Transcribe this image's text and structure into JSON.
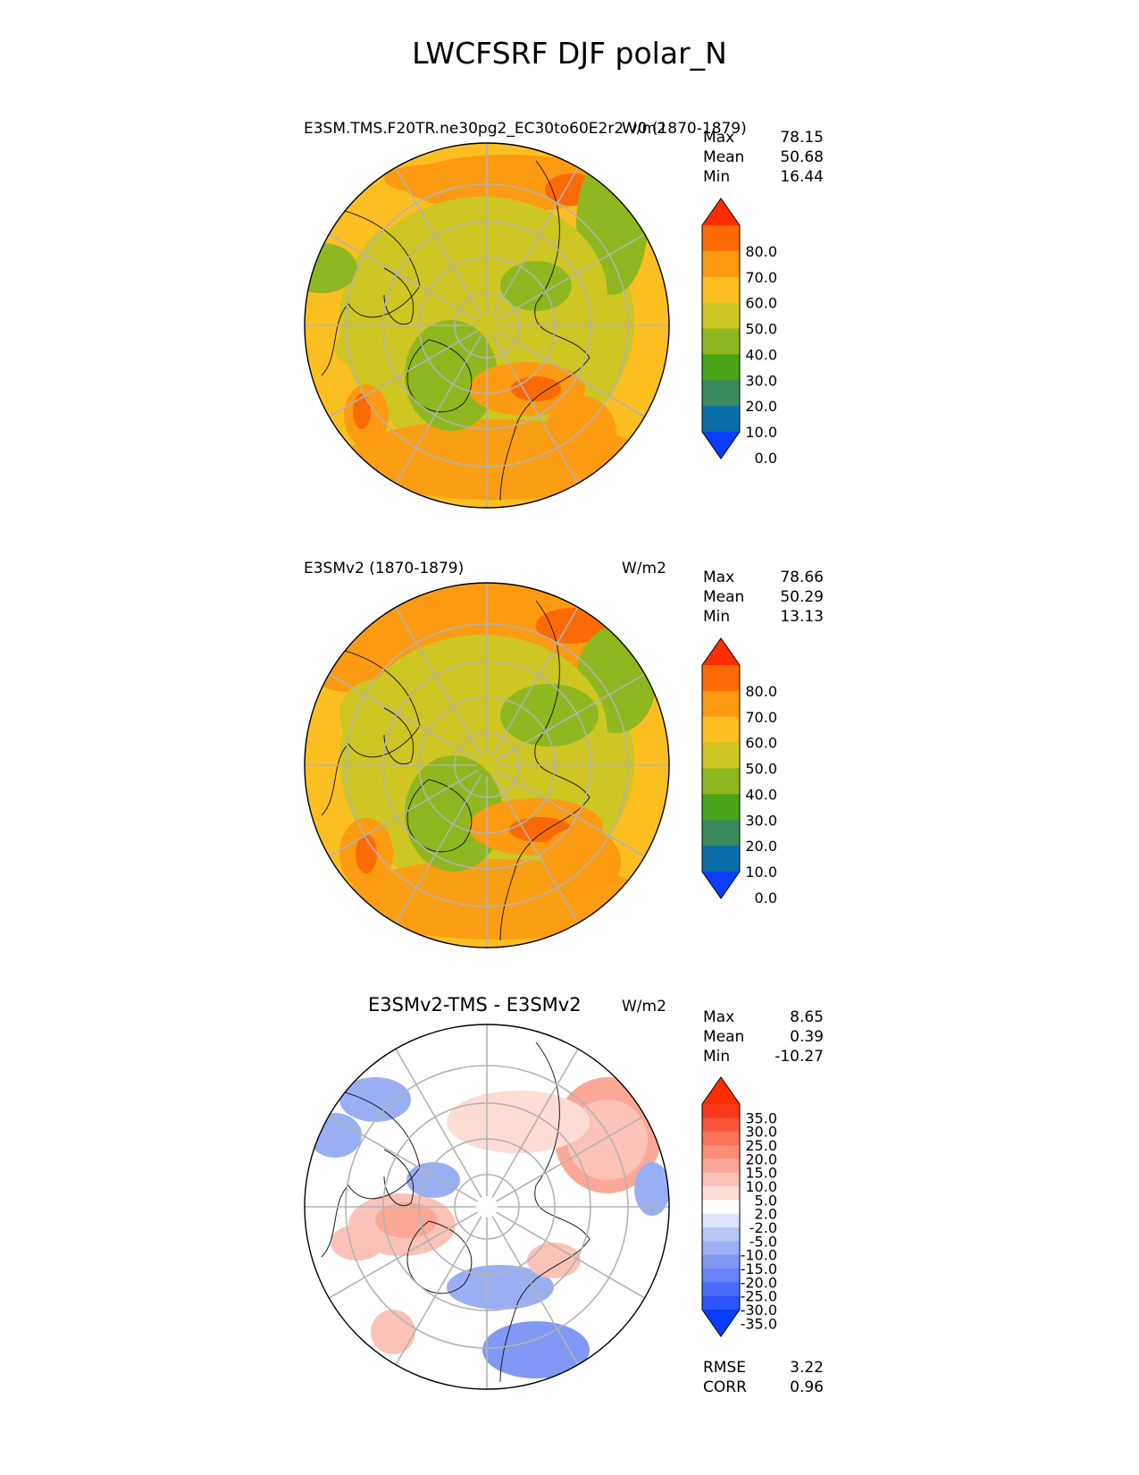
{
  "figure": {
    "title": "LWCFSRF DJF polar_N"
  },
  "panels": [
    {
      "id": "test",
      "title_left": "E3SM.TMS.F20TR.ne30pg2_EC30to60E2r2.v0 (1870-1879)",
      "units": "W/m2",
      "stats": [
        {
          "label": "Max",
          "value": "78.15"
        },
        {
          "label": "Mean",
          "value": "50.68"
        },
        {
          "label": "Min",
          "value": "16.44"
        }
      ]
    },
    {
      "id": "reference",
      "title_left": "E3SMv2 (1870-1879)",
      "units": "W/m2",
      "stats": [
        {
          "label": "Max",
          "value": "78.66"
        },
        {
          "label": "Mean",
          "value": "50.29"
        },
        {
          "label": "Min",
          "value": "13.13"
        }
      ]
    },
    {
      "id": "difference",
      "title_center": "E3SMv2-TMS - E3SMv2",
      "units": "W/m2",
      "stats": [
        {
          "label": "Max",
          "value": "8.65"
        },
        {
          "label": "Mean",
          "value": "0.39"
        },
        {
          "label": "Min",
          "value": "-10.27"
        }
      ],
      "metrics": [
        {
          "label": "RMSE",
          "value": "3.22"
        },
        {
          "label": "CORR",
          "value": "0.96"
        }
      ]
    }
  ],
  "chart_data": [
    {
      "type": "heatmap",
      "projection": "north polar stereographic",
      "title": "E3SM.TMS.F20TR.ne30pg2_EC30to60E2r2.v0 (1870-1879)",
      "units": "W/m2",
      "colorbar": {
        "extend": "both",
        "ticks": [
          "80.0",
          "70.0",
          "60.0",
          "50.0",
          "40.0",
          "30.0",
          "20.0",
          "10.0",
          "0.0"
        ],
        "bounds": [
          0,
          10,
          20,
          30,
          40,
          50,
          60,
          70,
          80
        ],
        "colors": [
          "#0b3dff",
          "#0b6ea8",
          "#3a8a5e",
          "#4aa419",
          "#8fb71f",
          "#cdc623",
          "#fcbf22",
          "#fc9a12",
          "#fc6a05",
          "#ff2e00"
        ]
      },
      "stats": {
        "max": 78.15,
        "mean": 50.68,
        "min": 16.44
      }
    },
    {
      "type": "heatmap",
      "projection": "north polar stereographic",
      "title": "E3SMv2 (1870-1879)",
      "units": "W/m2",
      "colorbar": {
        "extend": "both",
        "ticks": [
          "80.0",
          "70.0",
          "60.0",
          "50.0",
          "40.0",
          "30.0",
          "20.0",
          "10.0",
          "0.0"
        ],
        "bounds": [
          0,
          10,
          20,
          30,
          40,
          50,
          60,
          70,
          80
        ],
        "colors": [
          "#0b3dff",
          "#0b6ea8",
          "#3a8a5e",
          "#4aa419",
          "#8fb71f",
          "#cdc623",
          "#fcbf22",
          "#fc9a12",
          "#fc6a05",
          "#ff2e00"
        ]
      },
      "stats": {
        "max": 78.66,
        "mean": 50.29,
        "min": 13.13
      }
    },
    {
      "type": "heatmap",
      "projection": "north polar stereographic",
      "title": "E3SMv2-TMS - E3SMv2",
      "units": "W/m2",
      "colorbar": {
        "extend": "both",
        "ticks": [
          "35.0",
          "30.0",
          "25.0",
          "20.0",
          "15.0",
          "10.0",
          "5.0",
          "2.0",
          "-2.0",
          "-5.0",
          "-10.0",
          "-15.0",
          "-20.0",
          "-25.0",
          "-30.0",
          "-35.0"
        ],
        "bounds": [
          -35,
          -30,
          -25,
          -20,
          -15,
          -10,
          -5,
          -2,
          2,
          5,
          10,
          15,
          20,
          25,
          30,
          35
        ],
        "colors": [
          "#0b3dff",
          "#2e55fb",
          "#4a6cf8",
          "#6583f6",
          "#7f99f4",
          "#9aaff3",
          "#b7c6f5",
          "#dde4fb",
          "#ffffff",
          "#fddcd6",
          "#fcc2b7",
          "#fca897",
          "#fc8e78",
          "#fb7359",
          "#fa553a",
          "#f8371b",
          "#ff2e00"
        ]
      },
      "stats": {
        "max": 8.65,
        "mean": 0.39,
        "min": -10.27
      },
      "rmse": 3.22,
      "corr": 0.96
    }
  ]
}
